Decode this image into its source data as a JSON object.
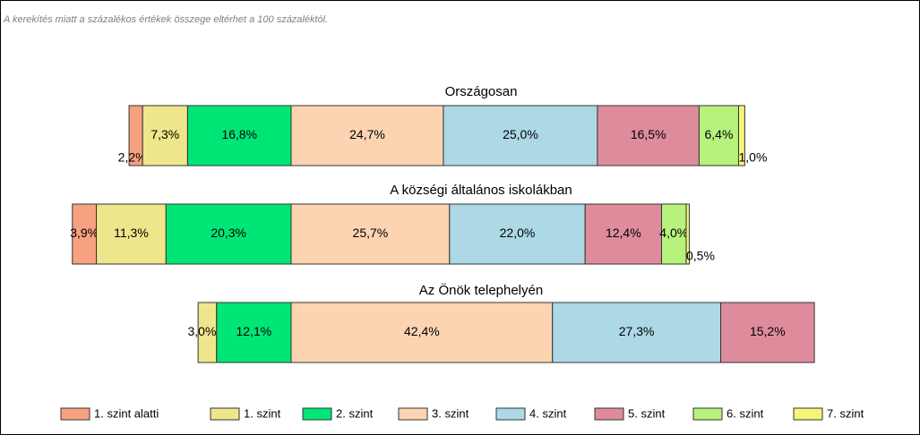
{
  "chart_data": {
    "type": "bar",
    "stacked": true,
    "orientation": "horizontal",
    "subtitle": "A kerekítés miatt a  százalékos értékek összege eltérhet a 100 százaléktól.",
    "categories": [
      "Országosan",
      "A községi általános iskolákban",
      "Az Önök telephelyén"
    ],
    "series": [
      {
        "name": "1. szint alatti",
        "color": "#f7a181",
        "values": [
          2.2,
          3.9,
          null
        ],
        "value_labels": [
          "2,2%",
          "3,9%",
          null
        ]
      },
      {
        "name": "1. szint",
        "color": "#efe68c",
        "values": [
          7.3,
          11.3,
          3.0
        ],
        "value_labels": [
          "7,3%",
          "11,3%",
          "3,0%"
        ]
      },
      {
        "name": "2. szint",
        "color": "#00e676",
        "values": [
          16.8,
          20.3,
          12.1
        ],
        "value_labels": [
          "16,8%",
          "20,3%",
          "12,1%"
        ]
      },
      {
        "name": "3. szint",
        "color": "#fdd4b1",
        "values": [
          24.7,
          25.7,
          42.4
        ],
        "value_labels": [
          "24,7%",
          "25,7%",
          "42,4%"
        ]
      },
      {
        "name": "4. szint",
        "color": "#add8e6",
        "values": [
          25.0,
          22.0,
          27.3
        ],
        "value_labels": [
          "25,0%",
          "22,0%",
          "27,3%"
        ]
      },
      {
        "name": "5. szint",
        "color": "#de8c9c",
        "values": [
          16.5,
          12.4,
          15.2
        ],
        "value_labels": [
          "16,5%",
          "12,4%",
          "15,2%"
        ]
      },
      {
        "name": "6. szint",
        "color": "#b6f27c",
        "values": [
          6.4,
          4.0,
          null
        ],
        "value_labels": [
          "6,4%",
          "4,0%",
          null
        ]
      },
      {
        "name": "7. szint",
        "color": "#f5f57a",
        "values": [
          1.0,
          0.5,
          null
        ],
        "value_labels": [
          "1,0%",
          "0,5%",
          null
        ]
      }
    ]
  }
}
